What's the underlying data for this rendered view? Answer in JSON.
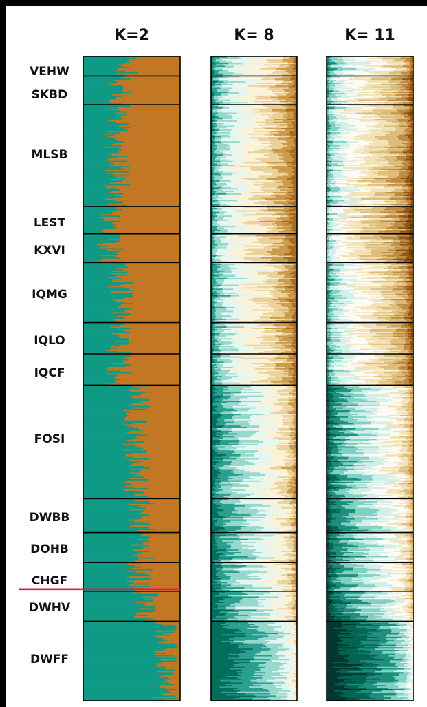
{
  "chart_data": {
    "type": "bar",
    "orientation": "horizontal-stacked",
    "panels": [
      {
        "label": "K=2",
        "k": 2,
        "colors": [
          "#0f9a85",
          "#c27725"
        ]
      },
      {
        "label": "K= 8",
        "k": 8,
        "colors": [
          "#046e5c",
          "#2a9f90",
          "#96d8cc",
          "#e4f6f1",
          "#fbf2d8",
          "#ead29a",
          "#cd9a4c",
          "#a76a1e"
        ]
      },
      {
        "label": "K= 11",
        "k": 11,
        "colors": [
          "#03372e",
          "#046454",
          "#1e8e7d",
          "#7fd1c3",
          "#d2efe9",
          "#fdfaf3",
          "#f2e2b6",
          "#ddbd7b",
          "#bf8b41",
          "#8e5719",
          "#5e3708"
        ]
      }
    ],
    "populations": [
      {
        "name": "VEHW",
        "size": 15,
        "ancestry_k2": 0.44
      },
      {
        "name": "SKBD",
        "size": 22,
        "ancestry_k2": 0.38
      },
      {
        "name": "MLSB",
        "size": 78,
        "ancestry_k2": 0.35
      },
      {
        "name": "LEST",
        "size": 21,
        "ancestry_k2": 0.29
      },
      {
        "name": "KXVI",
        "size": 22,
        "ancestry_k2": 0.27
      },
      {
        "name": "IQMG",
        "size": 46,
        "ancestry_k2": 0.39
      },
      {
        "name": "IQLO",
        "size": 24,
        "ancestry_k2": 0.38
      },
      {
        "name": "IQCF",
        "size": 24,
        "ancestry_k2": 0.37
      },
      {
        "name": "FOSI",
        "size": 87,
        "ancestry_k2": 0.55
      },
      {
        "name": "DWBB",
        "size": 26,
        "ancestry_k2": 0.6
      },
      {
        "name": "DOHB",
        "size": 23,
        "ancestry_k2": 0.6
      },
      {
        "name": "CHGF",
        "size": 22,
        "ancestry_k2": 0.58
      },
      {
        "name": "DWHV",
        "size": 23,
        "ancestry_k2": 0.64
      },
      {
        "name": "DWFF",
        "size": 61,
        "ancestry_k2": 0.86
      }
    ],
    "marker_line": {
      "between": [
        "CHGF",
        "DWHV"
      ],
      "color": "#e8174a"
    }
  }
}
